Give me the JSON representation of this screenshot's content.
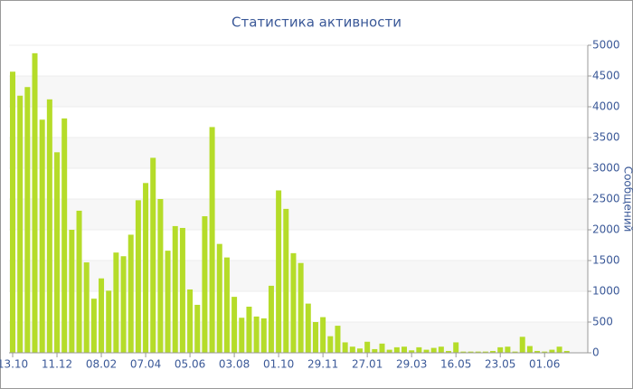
{
  "chart_data": {
    "type": "bar",
    "title": "Статистика активности",
    "y_axis_label": "Сообщений",
    "categories": [
      "13.10",
      null,
      null,
      null,
      null,
      null,
      "11.12",
      null,
      null,
      null,
      null,
      null,
      "08.02",
      null,
      null,
      null,
      null,
      null,
      "07.04",
      null,
      null,
      null,
      null,
      null,
      "05.06",
      null,
      null,
      null,
      null,
      null,
      "03.08",
      null,
      null,
      null,
      null,
      null,
      "01.10",
      null,
      null,
      null,
      null,
      null,
      "29.11",
      null,
      null,
      null,
      null,
      null,
      "27.01",
      null,
      null,
      null,
      null,
      null,
      "29.03",
      null,
      null,
      null,
      null,
      null,
      "16.05",
      null,
      null,
      null,
      null,
      null,
      "23.05",
      null,
      null,
      null,
      null,
      null,
      "01.06",
      null,
      null,
      null
    ],
    "values": [
      4570,
      4180,
      4320,
      4870,
      3790,
      4120,
      3260,
      3810,
      2000,
      2310,
      1470,
      880,
      1210,
      1010,
      1630,
      1570,
      1920,
      2480,
      2760,
      3170,
      2500,
      1660,
      2060,
      2030,
      1030,
      780,
      2220,
      3670,
      1770,
      1550,
      910,
      570,
      750,
      590,
      560,
      1090,
      2640,
      2340,
      1620,
      1460,
      800,
      500,
      580,
      270,
      440,
      170,
      100,
      70,
      180,
      60,
      150,
      50,
      90,
      100,
      40,
      90,
      50,
      80,
      100,
      30,
      170,
      20,
      20,
      20,
      20,
      30,
      90,
      100,
      20,
      260,
      110,
      30,
      20,
      50,
      100,
      30
    ],
    "color": "#b5dc29",
    "ylim": [
      0,
      5000
    ],
    "yticks": [
      0,
      500,
      1000,
      1500,
      2000,
      2500,
      3000,
      3500,
      4000,
      4500,
      5000
    ],
    "grid": true
  }
}
